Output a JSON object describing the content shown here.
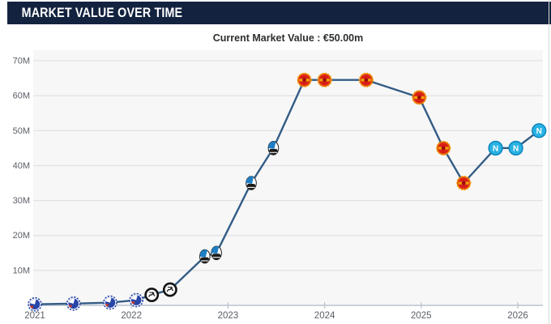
{
  "header": {
    "title": "MARKET VALUE OVER TIME"
  },
  "subtitle": "Current Market Value : €50.00m",
  "colors": {
    "header_bg": "#13233f",
    "header_text": "#ffffff",
    "line": "#335c85",
    "plot_bg": "#f7f7f7",
    "gridline": "#e2e2e2",
    "axis_line": "#b9c3cd",
    "tick_label": "#5a5f66",
    "napoli_cyan": "#29b2e4",
    "man_united_red": "#d91e18",
    "copenhagen_blue": "#2746a8",
    "atalanta_blue": "#1f7fc4",
    "sturm_black": "#141414"
  },
  "chart_data": {
    "type": "line",
    "title": "Market value over time",
    "xlabel": "",
    "ylabel": "",
    "ylim": [
      0,
      70
    ],
    "xlim": [
      2020.97,
      2026.3
    ],
    "grid": true,
    "legend": "none",
    "unit": "million euro",
    "yticks": [
      {
        "v": 10,
        "label": "10M"
      },
      {
        "v": 20,
        "label": "20M"
      },
      {
        "v": 30,
        "label": "30M"
      },
      {
        "v": 40,
        "label": "40M"
      },
      {
        "v": 50,
        "label": "50M"
      },
      {
        "v": 60,
        "label": "60M"
      },
      {
        "v": 70,
        "label": "70M"
      }
    ],
    "xticks": [
      {
        "v": 2021,
        "label": "2021"
      },
      {
        "v": 2022,
        "label": "2022"
      },
      {
        "v": 2023,
        "label": "2023"
      },
      {
        "v": 2024,
        "label": "2024"
      },
      {
        "v": 2025,
        "label": "2025"
      },
      {
        "v": 2026,
        "label": "2026"
      }
    ],
    "series": [
      {
        "name": "Market value (EUR millions)",
        "points": [
          {
            "x": 2021.0,
            "y": 0.3,
            "club": "fc-copenhagen"
          },
          {
            "x": 2021.4,
            "y": 0.5,
            "club": "fc-copenhagen"
          },
          {
            "x": 2021.78,
            "y": 0.8,
            "club": "fc-copenhagen"
          },
          {
            "x": 2022.05,
            "y": 1.5,
            "club": "fc-copenhagen"
          },
          {
            "x": 2022.21,
            "y": 3.0,
            "club": "sturm-graz"
          },
          {
            "x": 2022.4,
            "y": 4.5,
            "club": "sturm-graz"
          },
          {
            "x": 2022.76,
            "y": 14.0,
            "club": "atalanta"
          },
          {
            "x": 2022.88,
            "y": 15.0,
            "club": "atalanta"
          },
          {
            "x": 2023.24,
            "y": 35.0,
            "club": "atalanta"
          },
          {
            "x": 2023.47,
            "y": 45.0,
            "club": "atalanta"
          },
          {
            "x": 2023.79,
            "y": 64.5,
            "club": "man-united"
          },
          {
            "x": 2024.0,
            "y": 64.5,
            "club": "man-united"
          },
          {
            "x": 2024.43,
            "y": 64.5,
            "club": "man-united"
          },
          {
            "x": 2024.98,
            "y": 59.5,
            "club": "man-united"
          },
          {
            "x": 2025.23,
            "y": 45.0,
            "club": "man-united"
          },
          {
            "x": 2025.44,
            "y": 35.0,
            "club": "man-united"
          },
          {
            "x": 2025.77,
            "y": 45.0,
            "club": "napoli"
          },
          {
            "x": 2025.98,
            "y": 45.0,
            "club": "napoli"
          },
          {
            "x": 2026.22,
            "y": 50.0,
            "club": "napoli"
          }
        ]
      }
    ],
    "clubs": {
      "fc-copenhagen": "fc-copenhagen-crest-icon",
      "sturm-graz": "sturm-graz-crest-icon",
      "atalanta": "atalanta-crest-icon",
      "man-united": "man-united-crest-icon",
      "napoli": "napoli-crest-icon"
    }
  }
}
